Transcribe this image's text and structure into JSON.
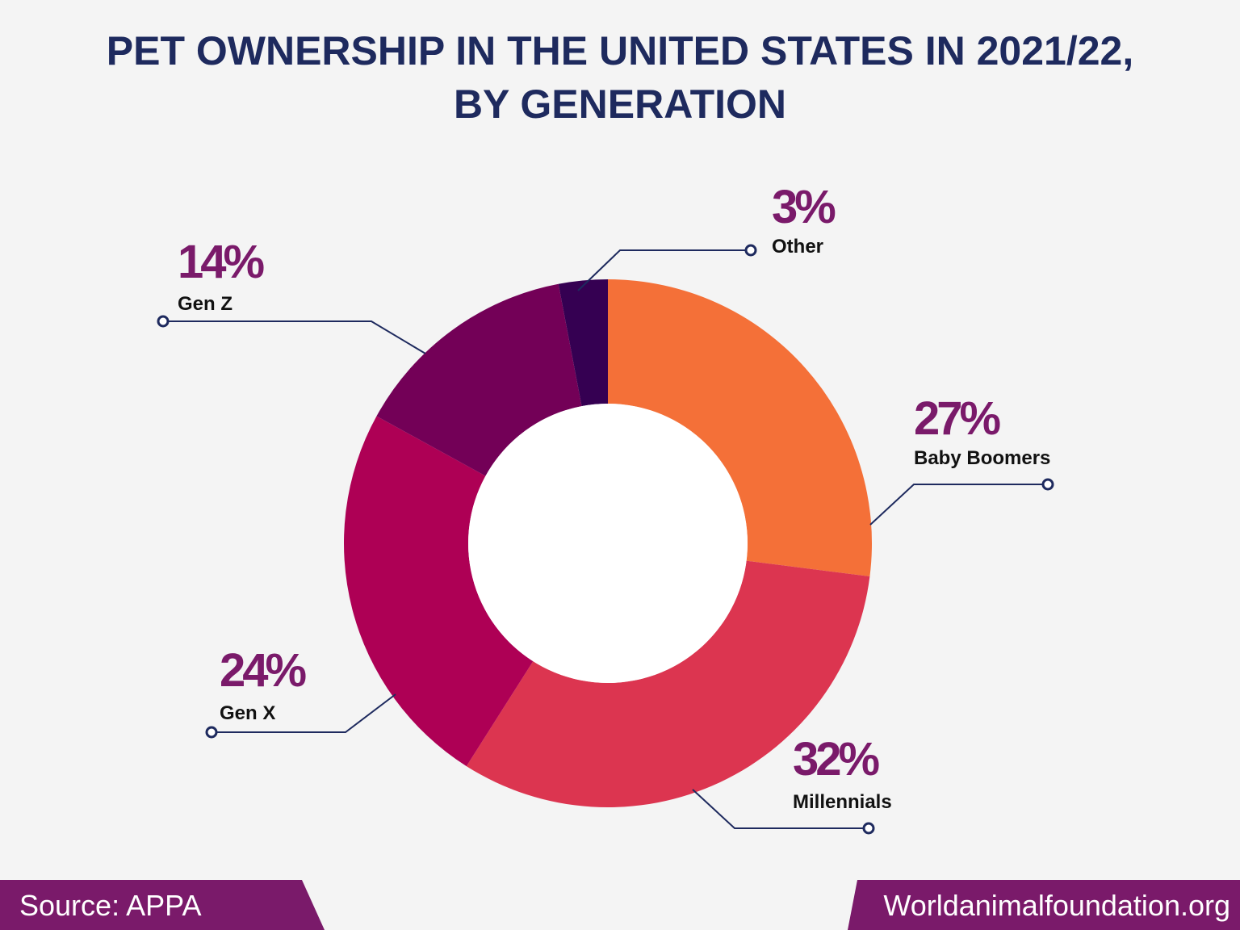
{
  "chart_data": {
    "type": "donut",
    "title": "PET OWNERSHIP IN THE UNITED STATES IN 2021/22, BY GENERATION",
    "categories": [
      "Baby Boomers",
      "Millennials",
      "Gen X",
      "Gen Z",
      "Other"
    ],
    "values": [
      27,
      32,
      24,
      14,
      3
    ],
    "value_labels": [
      "27%",
      "32%",
      "24%",
      "14%",
      "3%"
    ],
    "colors": [
      "#f47038",
      "#dc3550",
      "#ae0055",
      "#730057",
      "#350052"
    ]
  },
  "footer": {
    "source": "Source: APPA",
    "website": "Worldanimalfoundation.org"
  }
}
